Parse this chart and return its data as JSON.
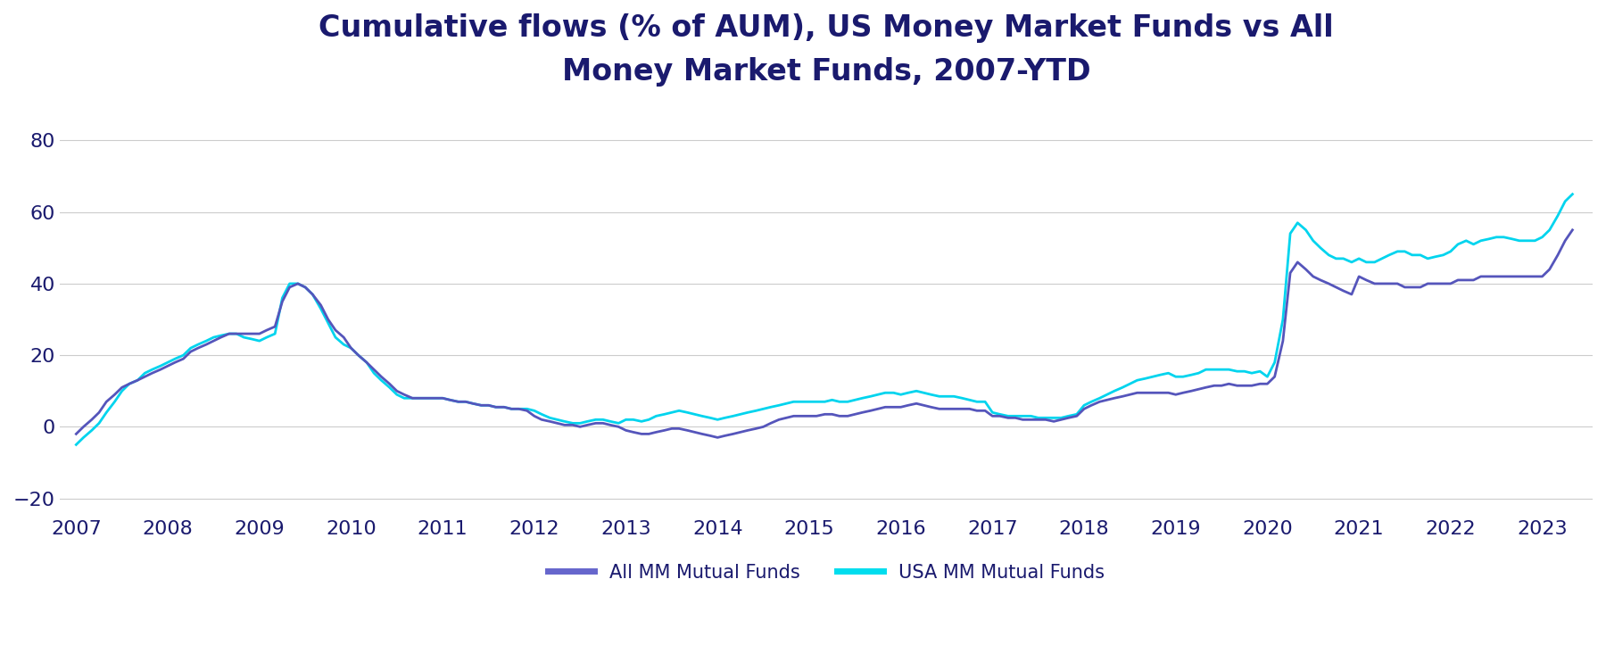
{
  "title": "Cumulative flows (% of AUM), US Money Market Funds vs All\nMoney Market Funds, 2007-YTD",
  "title_fontsize": 24,
  "title_color": "#1a1a6e",
  "background_color": "#ffffff",
  "plot_background": "#ffffff",
  "ylim": [
    -25,
    90
  ],
  "yticks": [
    -20,
    0,
    20,
    40,
    60,
    80
  ],
  "xlabel_years": [
    2007,
    2008,
    2009,
    2010,
    2011,
    2012,
    2013,
    2014,
    2015,
    2016,
    2017,
    2018,
    2019,
    2020,
    2021,
    2022,
    2023
  ],
  "legend_labels": [
    "All MM Mutual Funds",
    "USA MM Mutual Funds"
  ],
  "all_mm_color": "#5555bb",
  "usa_mm_color": "#00d4ee",
  "legend_all_color": "#6666cc",
  "legend_usa_color": "#00ddee",
  "line_width": 2.0,
  "tick_color": "#1a1a6e",
  "tick_fontsize": 16,
  "grid_color": "#cccccc",
  "all_mm_x": [
    2007.0,
    2007.08,
    2007.17,
    2007.25,
    2007.33,
    2007.42,
    2007.5,
    2007.58,
    2007.67,
    2007.75,
    2007.83,
    2007.92,
    2008.0,
    2008.08,
    2008.17,
    2008.25,
    2008.33,
    2008.42,
    2008.5,
    2008.58,
    2008.67,
    2008.75,
    2008.83,
    2008.92,
    2009.0,
    2009.08,
    2009.17,
    2009.25,
    2009.33,
    2009.42,
    2009.5,
    2009.58,
    2009.67,
    2009.75,
    2009.83,
    2009.92,
    2010.0,
    2010.08,
    2010.17,
    2010.25,
    2010.33,
    2010.42,
    2010.5,
    2010.58,
    2010.67,
    2010.75,
    2010.83,
    2010.92,
    2011.0,
    2011.08,
    2011.17,
    2011.25,
    2011.33,
    2011.42,
    2011.5,
    2011.58,
    2011.67,
    2011.75,
    2011.83,
    2011.92,
    2012.0,
    2012.08,
    2012.17,
    2012.25,
    2012.33,
    2012.42,
    2012.5,
    2012.58,
    2012.67,
    2012.75,
    2012.83,
    2012.92,
    2013.0,
    2013.08,
    2013.17,
    2013.25,
    2013.33,
    2013.42,
    2013.5,
    2013.58,
    2013.67,
    2013.75,
    2013.83,
    2013.92,
    2014.0,
    2014.08,
    2014.17,
    2014.25,
    2014.33,
    2014.42,
    2014.5,
    2014.58,
    2014.67,
    2014.75,
    2014.83,
    2014.92,
    2015.0,
    2015.08,
    2015.17,
    2015.25,
    2015.33,
    2015.42,
    2015.5,
    2015.58,
    2015.67,
    2015.75,
    2015.83,
    2015.92,
    2016.0,
    2016.08,
    2016.17,
    2016.25,
    2016.33,
    2016.42,
    2016.5,
    2016.58,
    2016.67,
    2016.75,
    2016.83,
    2016.92,
    2017.0,
    2017.08,
    2017.17,
    2017.25,
    2017.33,
    2017.42,
    2017.5,
    2017.58,
    2017.67,
    2017.75,
    2017.83,
    2017.92,
    2018.0,
    2018.08,
    2018.17,
    2018.25,
    2018.33,
    2018.42,
    2018.5,
    2018.58,
    2018.67,
    2018.75,
    2018.83,
    2018.92,
    2019.0,
    2019.08,
    2019.17,
    2019.25,
    2019.33,
    2019.42,
    2019.5,
    2019.58,
    2019.67,
    2019.75,
    2019.83,
    2019.92,
    2020.0,
    2020.08,
    2020.17,
    2020.25,
    2020.33,
    2020.42,
    2020.5,
    2020.58,
    2020.67,
    2020.75,
    2020.83,
    2020.92,
    2021.0,
    2021.08,
    2021.17,
    2021.25,
    2021.33,
    2021.42,
    2021.5,
    2021.58,
    2021.67,
    2021.75,
    2021.83,
    2021.92,
    2022.0,
    2022.08,
    2022.17,
    2022.25,
    2022.33,
    2022.42,
    2022.5,
    2022.58,
    2022.67,
    2022.75,
    2022.83,
    2022.92,
    2023.0,
    2023.08,
    2023.17,
    2023.25,
    2023.33
  ],
  "all_mm_y": [
    -2,
    0,
    2,
    4,
    7,
    9,
    11,
    12,
    13,
    14,
    15,
    16,
    17,
    18,
    19,
    21,
    22,
    23,
    24,
    25,
    26,
    26,
    26,
    26,
    26,
    27,
    28,
    35,
    39,
    40,
    39,
    37,
    34,
    30,
    27,
    25,
    22,
    20,
    18,
    16,
    14,
    12,
    10,
    9,
    8,
    8,
    8,
    8,
    8,
    7.5,
    7,
    7,
    6.5,
    6,
    6,
    5.5,
    5.5,
    5,
    5,
    4.5,
    3,
    2,
    1.5,
    1,
    0.5,
    0.5,
    0,
    0.5,
    1,
    1,
    0.5,
    0,
    -1,
    -1.5,
    -2,
    -2,
    -1.5,
    -1,
    -0.5,
    -0.5,
    -1,
    -1.5,
    -2,
    -2.5,
    -3,
    -2.5,
    -2,
    -1.5,
    -1,
    -0.5,
    0,
    1,
    2,
    2.5,
    3,
    3,
    3,
    3,
    3.5,
    3.5,
    3,
    3,
    3.5,
    4,
    4.5,
    5,
    5.5,
    5.5,
    5.5,
    6,
    6.5,
    6,
    5.5,
    5,
    5,
    5,
    5,
    5,
    4.5,
    4.5,
    3,
    3,
    2.5,
    2.5,
    2,
    2,
    2,
    2,
    1.5,
    2,
    2.5,
    3,
    5,
    6,
    7,
    7.5,
    8,
    8.5,
    9,
    9.5,
    9.5,
    9.5,
    9.5,
    9.5,
    9,
    9.5,
    10,
    10.5,
    11,
    11.5,
    11.5,
    12,
    11.5,
    11.5,
    11.5,
    12,
    12,
    14,
    24,
    43,
    46,
    44,
    42,
    41,
    40,
    39,
    38,
    37,
    42,
    41,
    40,
    40,
    40,
    40,
    39,
    39,
    39,
    40,
    40,
    40,
    40,
    41,
    41,
    41,
    42,
    42,
    42,
    42,
    42,
    42,
    42,
    42,
    42,
    44,
    48,
    52,
    55
  ],
  "usa_mm_x": [
    2007.0,
    2007.08,
    2007.17,
    2007.25,
    2007.33,
    2007.42,
    2007.5,
    2007.58,
    2007.67,
    2007.75,
    2007.83,
    2007.92,
    2008.0,
    2008.08,
    2008.17,
    2008.25,
    2008.33,
    2008.42,
    2008.5,
    2008.58,
    2008.67,
    2008.75,
    2008.83,
    2008.92,
    2009.0,
    2009.08,
    2009.17,
    2009.25,
    2009.33,
    2009.42,
    2009.5,
    2009.58,
    2009.67,
    2009.75,
    2009.83,
    2009.92,
    2010.0,
    2010.08,
    2010.17,
    2010.25,
    2010.33,
    2010.42,
    2010.5,
    2010.58,
    2010.67,
    2010.75,
    2010.83,
    2010.92,
    2011.0,
    2011.08,
    2011.17,
    2011.25,
    2011.33,
    2011.42,
    2011.5,
    2011.58,
    2011.67,
    2011.75,
    2011.83,
    2011.92,
    2012.0,
    2012.08,
    2012.17,
    2012.25,
    2012.33,
    2012.42,
    2012.5,
    2012.58,
    2012.67,
    2012.75,
    2012.83,
    2012.92,
    2013.0,
    2013.08,
    2013.17,
    2013.25,
    2013.33,
    2013.42,
    2013.5,
    2013.58,
    2013.67,
    2013.75,
    2013.83,
    2013.92,
    2014.0,
    2014.08,
    2014.17,
    2014.25,
    2014.33,
    2014.42,
    2014.5,
    2014.58,
    2014.67,
    2014.75,
    2014.83,
    2014.92,
    2015.0,
    2015.08,
    2015.17,
    2015.25,
    2015.33,
    2015.42,
    2015.5,
    2015.58,
    2015.67,
    2015.75,
    2015.83,
    2015.92,
    2016.0,
    2016.08,
    2016.17,
    2016.25,
    2016.33,
    2016.42,
    2016.5,
    2016.58,
    2016.67,
    2016.75,
    2016.83,
    2016.92,
    2017.0,
    2017.08,
    2017.17,
    2017.25,
    2017.33,
    2017.42,
    2017.5,
    2017.58,
    2017.67,
    2017.75,
    2017.83,
    2017.92,
    2018.0,
    2018.08,
    2018.17,
    2018.25,
    2018.33,
    2018.42,
    2018.5,
    2018.58,
    2018.67,
    2018.75,
    2018.83,
    2018.92,
    2019.0,
    2019.08,
    2019.17,
    2019.25,
    2019.33,
    2019.42,
    2019.5,
    2019.58,
    2019.67,
    2019.75,
    2019.83,
    2019.92,
    2020.0,
    2020.08,
    2020.17,
    2020.25,
    2020.33,
    2020.42,
    2020.5,
    2020.58,
    2020.67,
    2020.75,
    2020.83,
    2020.92,
    2021.0,
    2021.08,
    2021.17,
    2021.25,
    2021.33,
    2021.42,
    2021.5,
    2021.58,
    2021.67,
    2021.75,
    2021.83,
    2021.92,
    2022.0,
    2022.08,
    2022.17,
    2022.25,
    2022.33,
    2022.42,
    2022.5,
    2022.58,
    2022.67,
    2022.75,
    2022.83,
    2022.92,
    2023.0,
    2023.08,
    2023.17,
    2023.25,
    2023.33
  ],
  "usa_mm_y": [
    -5,
    -3,
    -1,
    1,
    4,
    7,
    10,
    12,
    13,
    15,
    16,
    17,
    18,
    19,
    20,
    22,
    23,
    24,
    25,
    25.5,
    26,
    26,
    25,
    24.5,
    24,
    25,
    26,
    36,
    40,
    40,
    39,
    37,
    33,
    29,
    25,
    23,
    22,
    20,
    18,
    15,
    13,
    11,
    9,
    8,
    8,
    8,
    8,
    8,
    8,
    7.5,
    7,
    7,
    6.5,
    6,
    6,
    5.5,
    5.5,
    5,
    5,
    5,
    4.5,
    3.5,
    2.5,
    2,
    1.5,
    1,
    1,
    1.5,
    2,
    2,
    1.5,
    1,
    2,
    2,
    1.5,
    2,
    3,
    3.5,
    4,
    4.5,
    4,
    3.5,
    3,
    2.5,
    2,
    2.5,
    3,
    3.5,
    4,
    4.5,
    5,
    5.5,
    6,
    6.5,
    7,
    7,
    7,
    7,
    7,
    7.5,
    7,
    7,
    7.5,
    8,
    8.5,
    9,
    9.5,
    9.5,
    9,
    9.5,
    10,
    9.5,
    9,
    8.5,
    8.5,
    8.5,
    8,
    7.5,
    7,
    7,
    4,
    3.5,
    3,
    3,
    3,
    3,
    2.5,
    2.5,
    2.5,
    2.5,
    3,
    3.5,
    6,
    7,
    8,
    9,
    10,
    11,
    12,
    13,
    13.5,
    14,
    14.5,
    15,
    14,
    14,
    14.5,
    15,
    16,
    16,
    16,
    16,
    15.5,
    15.5,
    15,
    15.5,
    14,
    18,
    30,
    54,
    57,
    55,
    52,
    50,
    48,
    47,
    47,
    46,
    47,
    46,
    46,
    47,
    48,
    49,
    49,
    48,
    48,
    47,
    47.5,
    48,
    49,
    51,
    52,
    51,
    52,
    52.5,
    53,
    53,
    52.5,
    52,
    52,
    52,
    53,
    55,
    59,
    63,
    65
  ]
}
